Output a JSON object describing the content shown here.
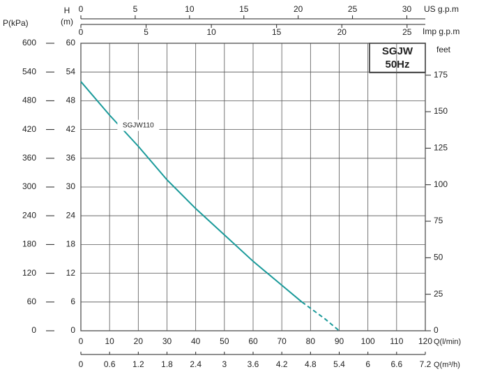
{
  "chart_data": {
    "type": "line",
    "title": "SGJW",
    "subtitle": "50Hz",
    "xlabel": "Q(l/min)",
    "xlim": [
      0,
      120
    ],
    "xticks": [
      0,
      10,
      20,
      30,
      40,
      50,
      60,
      70,
      80,
      90,
      100,
      110,
      120
    ],
    "x2label": "Q(m³/h)",
    "x2lim": [
      0,
      7.2
    ],
    "x2ticks": [
      0,
      0.6,
      1.2,
      1.8,
      2.4,
      3,
      3.6,
      4.2,
      4.8,
      5.4,
      6,
      6.6,
      7.2
    ],
    "x3label": "US g.p.m",
    "x3lim": [
      0,
      31.7
    ],
    "x3ticks": [
      0,
      5,
      10,
      15,
      20,
      25,
      30
    ],
    "x4label": "Imp g.p.m",
    "x4lim": [
      0,
      26.4
    ],
    "x4ticks": [
      0,
      5,
      10,
      15,
      20,
      25
    ],
    "ylabel": "H",
    "yunit": "(m)",
    "ylim": [
      0,
      60
    ],
    "yticks": [
      0,
      6,
      12,
      18,
      24,
      30,
      36,
      42,
      48,
      54,
      60
    ],
    "plabel": "P(kPa)",
    "plim": [
      0,
      600
    ],
    "pticks": [
      0,
      60,
      120,
      180,
      240,
      300,
      360,
      420,
      480,
      540,
      600
    ],
    "y2label": "feet",
    "y2lim": [
      0,
      196.85
    ],
    "y2ticks": [
      0,
      25,
      50,
      75,
      100,
      125,
      150,
      175
    ],
    "grid": true,
    "series": [
      {
        "name": "SGJW110",
        "color": "#1a9a9a",
        "linestyle": "solid",
        "x": [
          0,
          10,
          20,
          30,
          40,
          50,
          60,
          70,
          77
        ],
        "values": [
          52,
          45,
          38.5,
          31.5,
          25.5,
          20,
          14.5,
          9.5,
          6
        ]
      },
      {
        "color": "#1a9a9a",
        "linestyle": "dashed",
        "x": [
          77,
          85,
          90
        ],
        "values": [
          6,
          2.5,
          0
        ]
      }
    ]
  }
}
